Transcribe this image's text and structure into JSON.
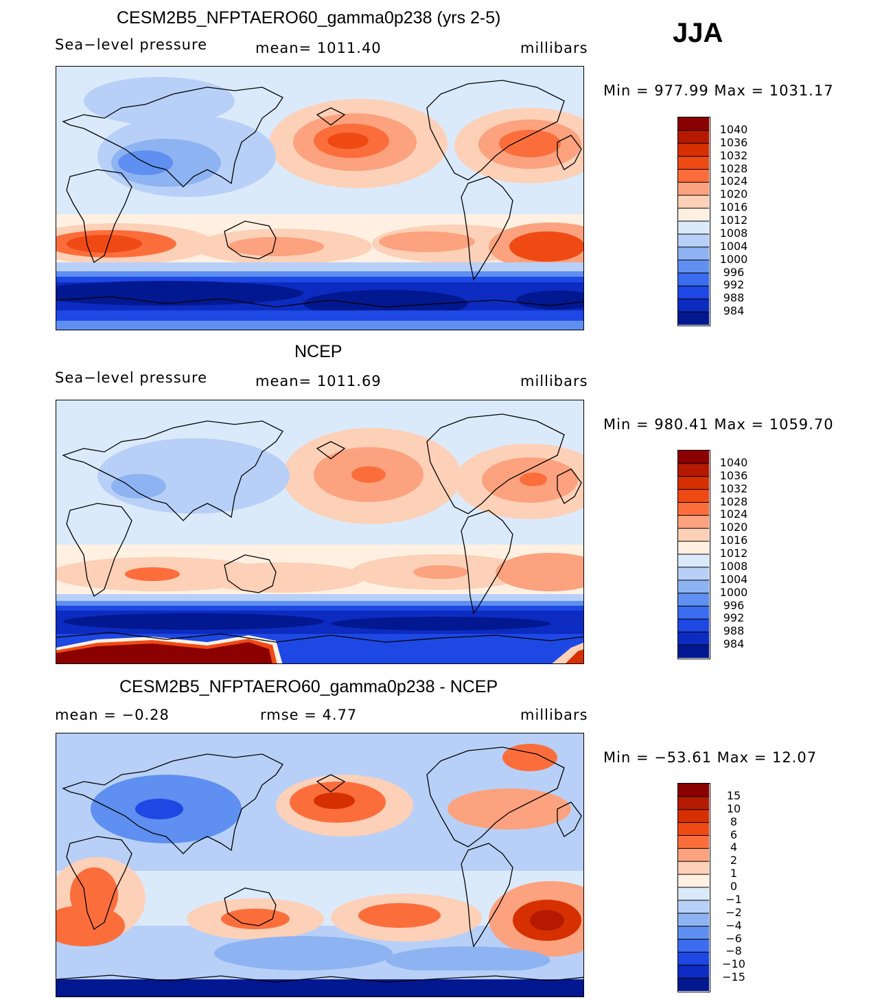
{
  "season": "JJA",
  "units": "millibars",
  "panels": [
    {
      "id": "model",
      "title": "CESM2B5_NFPTAERO60_gamma0p238 (yrs 2-5)",
      "variable": "Sea−level pressure",
      "stat_text": "mean=  1011.40",
      "units": "millibars",
      "minmax_text": "Min  =  977.99  Max  =  1031.17",
      "colorbar_levels": [
        "1040",
        "1036",
        "1032",
        "1028",
        "1024",
        "1020",
        "1016",
        "1012",
        "1008",
        "1004",
        "1000",
        "996",
        "992",
        "988",
        "984"
      ]
    },
    {
      "id": "ncep",
      "title": "NCEP",
      "variable": "Sea−level pressure",
      "stat_text": "mean=  1011.69",
      "units": "millibars",
      "minmax_text": "Min  =  980.41  Max  =  1059.70",
      "colorbar_levels": [
        "1040",
        "1036",
        "1032",
        "1028",
        "1024",
        "1020",
        "1016",
        "1012",
        "1008",
        "1004",
        "1000",
        "996",
        "992",
        "988",
        "984"
      ]
    },
    {
      "id": "diff",
      "title": "CESM2B5_NFPTAERO60_gamma0p238 - NCEP",
      "mean_text": "mean  =    −0.28",
      "rmse_text": "rmse  =     4.77",
      "units": "millibars",
      "minmax_text": "Min  =  −53.61  Max  =     12.07",
      "colorbar_levels": [
        "15",
        "10",
        "8",
        "6",
        "4",
        "2",
        "1",
        "0",
        "−1",
        "−2",
        "−4",
        "−6",
        "−8",
        "−10",
        "−15"
      ]
    }
  ],
  "colorbar_colors": [
    "#8b0000",
    "#b51a00",
    "#d63000",
    "#f04a14",
    "#fb6e3c",
    "#fca27e",
    "#fdd0b8",
    "#fff0e2",
    "#dbeafb",
    "#b8d0f7",
    "#8eb3f2",
    "#5f8ff0",
    "#3b6cf0",
    "#1d48e3",
    "#0c2bc0",
    "#021890"
  ],
  "chart_data": [
    {
      "type": "heatmap",
      "title": "CESM2B5_NFPTAERO60_gamma0p238 (yrs 2-5)",
      "variable": "Sea-level pressure",
      "units": "millibars",
      "mean": 1011.4,
      "min": 977.99,
      "max": 1031.17,
      "contour_levels": [
        984,
        988,
        992,
        996,
        1000,
        1004,
        1008,
        1012,
        1016,
        1020,
        1024,
        1028,
        1032,
        1036,
        1040
      ]
    },
    {
      "type": "heatmap",
      "title": "NCEP",
      "variable": "Sea-level pressure",
      "units": "millibars",
      "mean": 1011.69,
      "min": 980.41,
      "max": 1059.7,
      "contour_levels": [
        984,
        988,
        992,
        996,
        1000,
        1004,
        1008,
        1012,
        1016,
        1020,
        1024,
        1028,
        1032,
        1036,
        1040
      ]
    },
    {
      "type": "heatmap",
      "title": "CESM2B5_NFPTAERO60_gamma0p238 - NCEP",
      "units": "millibars",
      "mean": -0.28,
      "rmse": 4.77,
      "min": -53.61,
      "max": 12.07,
      "contour_levels": [
        -15,
        -10,
        -8,
        -6,
        -4,
        -2,
        -1,
        0,
        1,
        2,
        4,
        6,
        8,
        10,
        15
      ]
    }
  ]
}
